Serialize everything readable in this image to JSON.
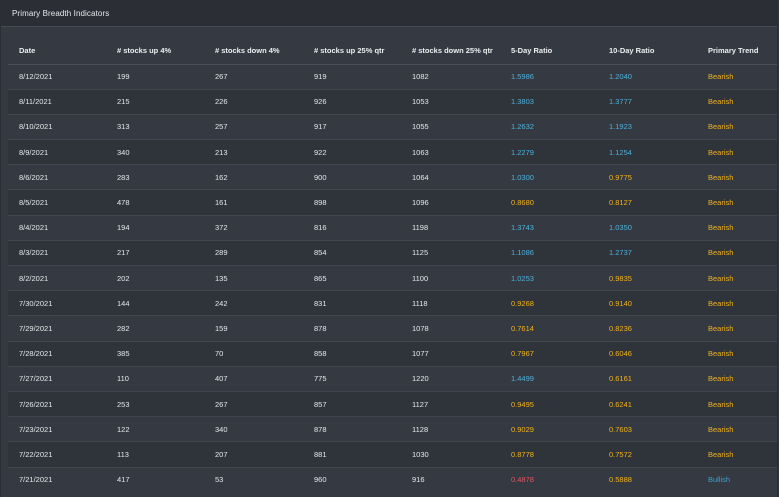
{
  "panel": {
    "title": "Primary Breadth Indicators"
  },
  "colors": {
    "ratio_above_one": "#4fb0da",
    "ratio_below_one": "#f2b21b",
    "ratio_low": "#e0555d",
    "bearish": "#f2b21b",
    "bullish": "#3e9fcf"
  },
  "table": {
    "headers": [
      "Date",
      "# stocks up 4%",
      "# stocks down 4%",
      "# stocks up 25% qtr",
      "# stocks down 25% qtr",
      "5-Day Ratio",
      "10-Day Ratio",
      "Primary Trend"
    ],
    "rows": [
      [
        "8/12/2021",
        "199",
        "267",
        "919",
        "1082",
        "1.5986",
        "1.2040",
        "Bearish"
      ],
      [
        "8/11/2021",
        "215",
        "226",
        "926",
        "1053",
        "1.3803",
        "1.3777",
        "Bearish"
      ],
      [
        "8/10/2021",
        "313",
        "257",
        "917",
        "1055",
        "1.2632",
        "1.1923",
        "Bearish"
      ],
      [
        "8/9/2021",
        "340",
        "213",
        "922",
        "1063",
        "1.2279",
        "1.1254",
        "Bearish"
      ],
      [
        "8/6/2021",
        "283",
        "162",
        "900",
        "1064",
        "1.0300",
        "0.9775",
        "Bearish"
      ],
      [
        "8/5/2021",
        "478",
        "161",
        "898",
        "1096",
        "0.8680",
        "0.8127",
        "Bearish"
      ],
      [
        "8/4/2021",
        "194",
        "372",
        "816",
        "1198",
        "1.3743",
        "1.0350",
        "Bearish"
      ],
      [
        "8/3/2021",
        "217",
        "289",
        "854",
        "1125",
        "1.1086",
        "1.2737",
        "Bearish"
      ],
      [
        "8/2/2021",
        "202",
        "135",
        "865",
        "1100",
        "1.0253",
        "0.9835",
        "Bearish"
      ],
      [
        "7/30/2021",
        "144",
        "242",
        "831",
        "1118",
        "0.9268",
        "0.9140",
        "Bearish"
      ],
      [
        "7/29/2021",
        "282",
        "159",
        "878",
        "1078",
        "0.7614",
        "0.8236",
        "Bearish"
      ],
      [
        "7/28/2021",
        "385",
        "70",
        "858",
        "1077",
        "0.7967",
        "0.6046",
        "Bearish"
      ],
      [
        "7/27/2021",
        "110",
        "407",
        "775",
        "1220",
        "1.4499",
        "0.6161",
        "Bearish"
      ],
      [
        "7/26/2021",
        "253",
        "267",
        "857",
        "1127",
        "0.9495",
        "0.6241",
        "Bearish"
      ],
      [
        "7/23/2021",
        "122",
        "340",
        "878",
        "1128",
        "0.9029",
        "0.7603",
        "Bearish"
      ],
      [
        "7/22/2021",
        "113",
        "207",
        "881",
        "1030",
        "0.8778",
        "0.7572",
        "Bearish"
      ],
      [
        "7/21/2021",
        "417",
        "53",
        "960",
        "916",
        "0.4878",
        "0.5888",
        "Bullish"
      ]
    ]
  }
}
